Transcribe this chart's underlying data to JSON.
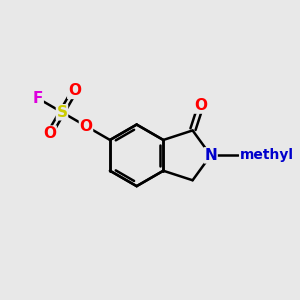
{
  "background_color": "#e8e8e8",
  "bond_color": "#000000",
  "bond_width": 1.8,
  "atom_colors": {
    "O": "#ff0000",
    "N": "#0000cc",
    "S": "#cccc00",
    "F": "#dd00dd"
  },
  "font_size": 11,
  "fig_size": [
    3.0,
    3.0
  ],
  "dpi": 100
}
